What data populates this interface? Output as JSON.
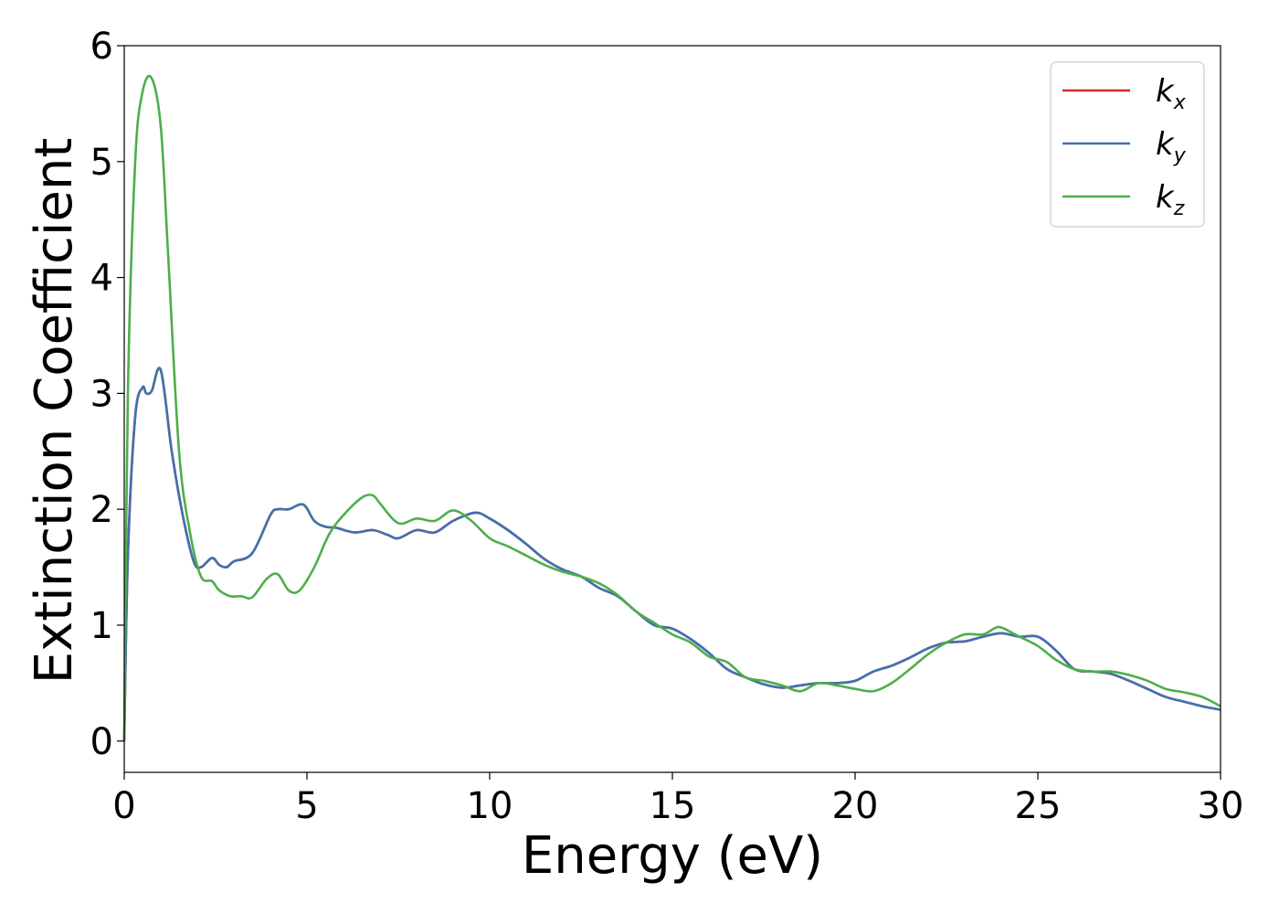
{
  "chart_data": {
    "type": "line",
    "xlabel": "Energy (eV)",
    "ylabel": "Extinction Coefficient",
    "xlim": [
      0,
      30
    ],
    "ylim": [
      -0.27,
      6.0
    ],
    "xticks": [
      0,
      5,
      10,
      15,
      20,
      25,
      30
    ],
    "yticks": [
      0,
      1,
      2,
      3,
      4,
      5,
      6
    ],
    "xtick_labels": [
      "0",
      "5",
      "10",
      "15",
      "20",
      "25",
      "30"
    ],
    "ytick_labels": [
      "0",
      "1",
      "2",
      "3",
      "4",
      "5",
      "6"
    ],
    "grid": false,
    "legend_position": "top-right",
    "series": [
      {
        "name": "k_x",
        "label_base": "k",
        "label_sub": "x",
        "color": "#d62728",
        "x": [
          0.0,
          0.1,
          0.3,
          0.5,
          0.6,
          0.75,
          1.0,
          1.3,
          1.6,
          1.9,
          2.1,
          2.4,
          2.6,
          2.8,
          3.0,
          3.5,
          4.0,
          4.2,
          4.5,
          4.9,
          5.2,
          5.5,
          5.8,
          6.3,
          6.8,
          7.2,
          7.5,
          8.0,
          8.5,
          9.0,
          9.6,
          10.0,
          10.5,
          11.0,
          11.5,
          12.0,
          12.5,
          13.0,
          13.5,
          14.0,
          14.5,
          15.0,
          15.5,
          16.0,
          16.5,
          17.0,
          17.5,
          18.0,
          18.5,
          19.0,
          19.5,
          20.0,
          20.5,
          21.0,
          21.5,
          22.0,
          22.5,
          23.0,
          23.5,
          24.0,
          24.5,
          25.0,
          25.5,
          26.0,
          26.5,
          27.0,
          27.5,
          28.0,
          28.5,
          29.0,
          29.5,
          30.0
        ],
        "y": [
          0.0,
          1.6,
          2.8,
          3.05,
          3.0,
          3.02,
          3.2,
          2.5,
          1.95,
          1.55,
          1.5,
          1.58,
          1.52,
          1.5,
          1.55,
          1.62,
          1.95,
          2.0,
          2.0,
          2.04,
          1.9,
          1.85,
          1.84,
          1.8,
          1.82,
          1.78,
          1.75,
          1.82,
          1.8,
          1.9,
          1.97,
          1.92,
          1.82,
          1.7,
          1.57,
          1.48,
          1.42,
          1.32,
          1.25,
          1.12,
          1.0,
          0.97,
          0.88,
          0.76,
          0.62,
          0.55,
          0.49,
          0.46,
          0.48,
          0.5,
          0.5,
          0.52,
          0.6,
          0.65,
          0.72,
          0.8,
          0.85,
          0.86,
          0.9,
          0.93,
          0.9,
          0.9,
          0.78,
          0.62,
          0.6,
          0.58,
          0.52,
          0.45,
          0.38,
          0.34,
          0.3,
          0.27
        ]
      },
      {
        "name": "k_y",
        "label_base": "k",
        "label_sub": "y",
        "color": "#4170b0",
        "x": [
          0.0,
          0.1,
          0.3,
          0.5,
          0.6,
          0.75,
          1.0,
          1.3,
          1.6,
          1.9,
          2.1,
          2.4,
          2.6,
          2.8,
          3.0,
          3.5,
          4.0,
          4.2,
          4.5,
          4.9,
          5.2,
          5.5,
          5.8,
          6.3,
          6.8,
          7.2,
          7.5,
          8.0,
          8.5,
          9.0,
          9.6,
          10.0,
          10.5,
          11.0,
          11.5,
          12.0,
          12.5,
          13.0,
          13.5,
          14.0,
          14.5,
          15.0,
          15.5,
          16.0,
          16.5,
          17.0,
          17.5,
          18.0,
          18.5,
          19.0,
          19.5,
          20.0,
          20.5,
          21.0,
          21.5,
          22.0,
          22.5,
          23.0,
          23.5,
          24.0,
          24.5,
          25.0,
          25.5,
          26.0,
          26.5,
          27.0,
          27.5,
          28.0,
          28.5,
          29.0,
          29.5,
          30.0
        ],
        "y": [
          0.0,
          1.6,
          2.8,
          3.05,
          3.0,
          3.02,
          3.2,
          2.5,
          1.95,
          1.55,
          1.5,
          1.58,
          1.52,
          1.5,
          1.55,
          1.62,
          1.95,
          2.0,
          2.0,
          2.04,
          1.9,
          1.85,
          1.84,
          1.8,
          1.82,
          1.78,
          1.75,
          1.82,
          1.8,
          1.9,
          1.97,
          1.92,
          1.82,
          1.7,
          1.57,
          1.48,
          1.42,
          1.32,
          1.25,
          1.12,
          1.0,
          0.97,
          0.88,
          0.76,
          0.62,
          0.55,
          0.49,
          0.46,
          0.48,
          0.5,
          0.5,
          0.52,
          0.6,
          0.65,
          0.72,
          0.8,
          0.85,
          0.86,
          0.9,
          0.93,
          0.9,
          0.9,
          0.78,
          0.62,
          0.6,
          0.58,
          0.52,
          0.45,
          0.38,
          0.34,
          0.3,
          0.27
        ]
      },
      {
        "name": "k_z",
        "label_base": "k",
        "label_sub": "z",
        "color": "#4daf4a",
        "x": [
          0.0,
          0.1,
          0.3,
          0.5,
          0.75,
          1.0,
          1.2,
          1.5,
          1.8,
          2.1,
          2.4,
          2.6,
          2.9,
          3.2,
          3.5,
          3.9,
          4.2,
          4.5,
          4.8,
          5.2,
          5.6,
          6.0,
          6.5,
          6.8,
          7.0,
          7.5,
          8.0,
          8.5,
          9.0,
          9.5,
          10.0,
          10.5,
          11.0,
          11.5,
          12.0,
          12.5,
          13.0,
          13.5,
          14.0,
          14.5,
          15.0,
          15.5,
          16.0,
          16.5,
          17.0,
          17.5,
          18.0,
          18.5,
          19.0,
          19.5,
          20.0,
          20.5,
          21.0,
          21.5,
          22.0,
          22.5,
          23.0,
          23.5,
          23.8,
          24.0,
          24.5,
          25.0,
          25.5,
          26.0,
          26.5,
          27.0,
          27.5,
          28.0,
          28.5,
          29.0,
          29.5,
          30.0
        ],
        "y": [
          0.0,
          3.0,
          5.0,
          5.6,
          5.72,
          5.3,
          4.2,
          2.5,
          1.8,
          1.42,
          1.38,
          1.3,
          1.25,
          1.25,
          1.24,
          1.4,
          1.44,
          1.3,
          1.3,
          1.5,
          1.78,
          1.95,
          2.1,
          2.12,
          2.05,
          1.88,
          1.92,
          1.9,
          1.99,
          1.9,
          1.75,
          1.68,
          1.6,
          1.52,
          1.46,
          1.42,
          1.36,
          1.26,
          1.12,
          1.02,
          0.92,
          0.85,
          0.73,
          0.68,
          0.55,
          0.52,
          0.48,
          0.43,
          0.5,
          0.48,
          0.45,
          0.43,
          0.5,
          0.62,
          0.75,
          0.85,
          0.92,
          0.92,
          0.97,
          0.98,
          0.9,
          0.82,
          0.7,
          0.62,
          0.6,
          0.6,
          0.57,
          0.52,
          0.45,
          0.42,
          0.38,
          0.3
        ]
      }
    ]
  }
}
